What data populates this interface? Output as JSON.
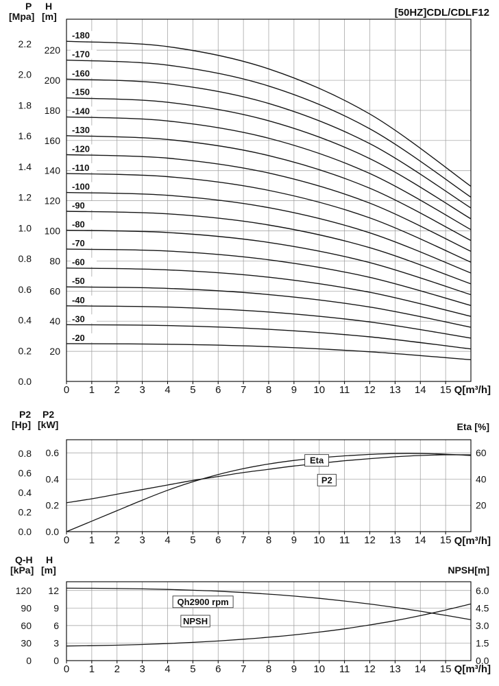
{
  "title": "[50HZ]CDL/CDLF12",
  "q_axis_label": "Q[m³/h]",
  "headers": {
    "c1_left1_name": "P",
    "c1_left1_unit": "[Mpa]",
    "c1_left2_name": "H",
    "c1_left2_unit": "[m]",
    "c2_left1_name": "P2",
    "c2_left1_unit": "[Hp]",
    "c2_left2_name": "P2",
    "c2_left2_unit": "[kW]",
    "c2_right": "Eta [%]",
    "c3_left1_name": "Q-H",
    "c3_left1_unit": "[kPa]",
    "c3_left2_name": "H",
    "c3_left2_unit": "[m]",
    "c3_right": "NPSH[m]"
  },
  "chart_data": [
    {
      "id": "head_curves",
      "type": "line",
      "title": "[50HZ]CDL/CDLF12",
      "axes": {
        "x": {
          "label": "Q[m³/h]",
          "range": [
            0,
            16
          ],
          "ticks": [
            0,
            1,
            2,
            3,
            4,
            5,
            6,
            7,
            8,
            9,
            10,
            11,
            12,
            13,
            14,
            15
          ]
        },
        "left_pressure": {
          "name": "P",
          "unit": "[Mpa]",
          "range": [
            0,
            2.36
          ],
          "ticks": [
            "0.0",
            "0.2",
            "0.4",
            "0.6",
            "0.8",
            "1.0",
            "1.2",
            "1.4",
            "1.6",
            "1.8",
            "2.0",
            "2.2"
          ]
        },
        "left_head": {
          "name": "H",
          "unit": "[m]",
          "range": [
            0,
            240.6
          ],
          "ticks": [
            20,
            40,
            60,
            80,
            100,
            120,
            140,
            160,
            180,
            200,
            220
          ]
        }
      },
      "grid": {
        "vertical_every_q": 1,
        "horizontal_every_m": 20
      },
      "sample_q": [
        0,
        4,
        8,
        12,
        16
      ],
      "series": [
        {
          "label": "-180",
          "head_m": [
            225.9,
            222.4,
            207.6,
            177.6,
            129.6
          ]
        },
        {
          "label": "-170",
          "head_m": [
            213.4,
            210.1,
            196.2,
            167.8,
            122.4
          ]
        },
        {
          "label": "-160",
          "head_m": [
            200.8,
            197.7,
            184.6,
            157.9,
            115.2
          ]
        },
        {
          "label": "-150",
          "head_m": [
            188.3,
            185.4,
            173.1,
            148.0,
            108.0
          ]
        },
        {
          "label": "-140",
          "head_m": [
            175.7,
            173.0,
            161.5,
            138.1,
            100.8
          ]
        },
        {
          "label": "-130",
          "head_m": [
            163.2,
            160.7,
            150.0,
            128.3,
            93.6
          ]
        },
        {
          "label": "-120",
          "head_m": [
            150.6,
            148.3,
            138.4,
            118.4,
            86.4
          ]
        },
        {
          "label": "-110",
          "head_m": [
            138.1,
            136.0,
            126.9,
            108.6,
            79.2
          ]
        },
        {
          "label": "-100",
          "head_m": [
            125.5,
            123.6,
            115.4,
            98.7,
            72.0
          ]
        },
        {
          "label": "-90",
          "head_m": [
            113.0,
            111.3,
            103.9,
            88.8,
            64.8
          ]
        },
        {
          "label": "-80",
          "head_m": [
            100.4,
            98.9,
            92.3,
            78.9,
            57.6
          ]
        },
        {
          "label": "-70",
          "head_m": [
            87.9,
            86.6,
            80.8,
            69.1,
            50.4
          ]
        },
        {
          "label": "-60",
          "head_m": [
            75.3,
            74.1,
            69.2,
            59.2,
            43.2
          ]
        },
        {
          "label": "-50",
          "head_m": [
            62.8,
            61.8,
            57.7,
            49.4,
            36.0
          ]
        },
        {
          "label": "-40",
          "head_m": [
            50.2,
            49.4,
            46.1,
            39.5,
            28.8
          ]
        },
        {
          "label": "-30",
          "head_m": [
            37.7,
            37.1,
            34.6,
            29.6,
            21.6
          ]
        },
        {
          "label": "-20",
          "head_m": [
            25.1,
            24.7,
            23.1,
            19.7,
            14.4
          ]
        }
      ]
    },
    {
      "id": "power_efficiency",
      "type": "line",
      "axes": {
        "x": {
          "label": "Q[m³/h]",
          "range": [
            0,
            16
          ],
          "ticks": [
            0,
            1,
            2,
            3,
            4,
            5,
            6,
            7,
            8,
            9,
            10,
            11,
            12,
            13,
            14,
            15
          ]
        },
        "left_hp": {
          "name": "P2",
          "unit": "[Hp]",
          "range": [
            0,
            0.94
          ],
          "ticks": [
            "0.8",
            "0.6",
            "0.4",
            "0.2",
            "0.0"
          ]
        },
        "left_kw": {
          "name": "P2",
          "unit": "[kW]",
          "range": [
            0,
            0.7
          ],
          "ticks": [
            "0.6",
            "0.4",
            "0.2",
            "0.0"
          ]
        },
        "right_eta": {
          "name": "Eta [%]",
          "range": [
            0,
            70
          ],
          "ticks": [
            60,
            40,
            20
          ]
        }
      },
      "x_values": [
        0,
        1,
        2,
        3,
        4,
        5,
        6,
        7,
        8,
        9,
        10,
        11,
        12,
        13,
        14,
        15,
        16
      ],
      "series": [
        {
          "name": "P2",
          "unit": "kW",
          "values": [
            0.22,
            0.25,
            0.285,
            0.32,
            0.355,
            0.39,
            0.42,
            0.45,
            0.475,
            0.5,
            0.52,
            0.54,
            0.556,
            0.57,
            0.58,
            0.585,
            0.585
          ]
        },
        {
          "name": "Eta",
          "unit": "%",
          "values": [
            0,
            8,
            16,
            24,
            31.5,
            38,
            43.5,
            48,
            51.5,
            54.2,
            56.2,
            57.7,
            58.8,
            59.5,
            59.5,
            59,
            58
          ]
        }
      ],
      "curve_labels": [
        {
          "text": "Eta",
          "q": 9.9,
          "eta": 54
        },
        {
          "text": "P2",
          "q": 10.3,
          "kw": 0.39
        }
      ]
    },
    {
      "id": "qh_npsh",
      "type": "line",
      "axes": {
        "x": {
          "label": "Q[m³/h]",
          "range": [
            0,
            16
          ],
          "ticks": [
            0,
            1,
            2,
            3,
            4,
            5,
            6,
            7,
            8,
            9,
            10,
            11,
            12,
            13,
            14,
            15
          ]
        },
        "left_kpa": {
          "name": "Q-H",
          "unit": "[kPa]",
          "range": [
            0,
            135
          ],
          "ticks": [
            120,
            90,
            60,
            30,
            0
          ]
        },
        "left_m": {
          "name": "H",
          "unit": "[m]",
          "range": [
            0,
            13.5
          ],
          "ticks": [
            12,
            9,
            6,
            3,
            0
          ]
        },
        "right_npsh": {
          "name": "NPSH[m]",
          "range": [
            0,
            6.75
          ],
          "ticks": [
            "6.0",
            "4.5",
            "3.0",
            "1.5",
            "0.0"
          ]
        }
      },
      "x_values": [
        0,
        1,
        2,
        3,
        4,
        5,
        6,
        7,
        8,
        9,
        10,
        11,
        12,
        13,
        14,
        15,
        16
      ],
      "series": [
        {
          "name": "Qh2900 rpm",
          "unit": "m",
          "values": [
            12.4,
            12.38,
            12.34,
            12.28,
            12.18,
            12.05,
            11.88,
            11.66,
            11.38,
            11.05,
            10.66,
            10.2,
            9.68,
            9.1,
            8.45,
            7.75,
            7.0
          ]
        },
        {
          "name": "NPSH",
          "unit": "m",
          "values": [
            1.25,
            1.28,
            1.32,
            1.38,
            1.46,
            1.56,
            1.68,
            1.83,
            2.0,
            2.2,
            2.44,
            2.72,
            3.05,
            3.42,
            3.85,
            4.33,
            4.85
          ]
        }
      ],
      "curve_labels": [
        {
          "text": "Qh2900 rpm",
          "q": 5.4,
          "m": 10.0
        },
        {
          "text": "NPSH",
          "q": 5.1,
          "m": 6.7
        }
      ]
    }
  ]
}
